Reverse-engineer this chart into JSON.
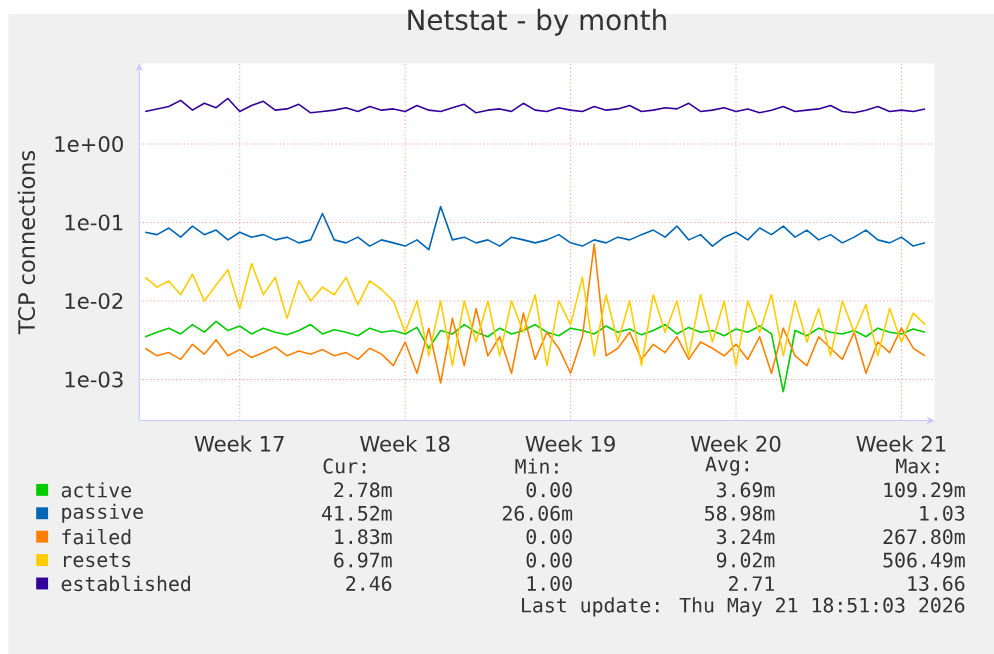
{
  "chart_data": {
    "type": "line",
    "title": "Netstat - by month",
    "ylabel": "TCP connections",
    "log": "y",
    "grid": true,
    "legend": "bottom",
    "categories": [
      null,
      null,
      null,
      null,
      null,
      null,
      null,
      null,
      "Week 17",
      null,
      null,
      null,
      null,
      null,
      null,
      null,
      null,
      null,
      null,
      null,
      null,
      null,
      "Week 18",
      null,
      null,
      null,
      null,
      null,
      null,
      null,
      null,
      null,
      null,
      null,
      null,
      null,
      "Week 19",
      null,
      null,
      null,
      null,
      null,
      null,
      null,
      null,
      null,
      null,
      null,
      null,
      null,
      "Week 20",
      null,
      null,
      null,
      null,
      null,
      null,
      null,
      null,
      null,
      null,
      null,
      null,
      null,
      "Week 21",
      null,
      null
    ],
    "ylim": [
      0.0003,
      10.6
    ],
    "yticks": [
      {
        "value": 0.001,
        "label": "1e-03"
      },
      {
        "value": 0.01,
        "label": "1e-02"
      },
      {
        "value": 0.1,
        "label": "1e-01"
      },
      {
        "value": 1,
        "label": "1e+00"
      }
    ],
    "series": [
      {
        "name": "active",
        "color": "#00cc00",
        "values": [
          0.0035,
          0.004,
          0.0045,
          0.0038,
          0.005,
          0.004,
          0.0055,
          0.0042,
          0.0048,
          0.0038,
          0.0045,
          0.004,
          0.0037,
          0.0042,
          0.005,
          0.0038,
          0.0043,
          0.004,
          0.0036,
          0.0045,
          0.004,
          0.0042,
          0.0038,
          0.0046,
          0.0025,
          0.0042,
          0.0038,
          0.005,
          0.004,
          0.0035,
          0.0045,
          0.0038,
          0.0042,
          0.005,
          0.004,
          0.0036,
          0.0045,
          0.0042,
          0.0038,
          0.0048,
          0.004,
          0.0044,
          0.0037,
          0.0042,
          0.005,
          0.0038,
          0.0046,
          0.004,
          0.0042,
          0.0036,
          0.0044,
          0.004,
          0.0048,
          0.0038,
          0.0007,
          0.0042,
          0.0036,
          0.0045,
          0.004,
          0.0038,
          0.0042,
          0.0035,
          0.0045,
          0.004,
          0.0038,
          0.0044,
          0.004
        ]
      },
      {
        "name": "passive",
        "color": "#0066b3",
        "values": [
          0.075,
          0.07,
          0.085,
          0.065,
          0.09,
          0.07,
          0.08,
          0.06,
          0.075,
          0.065,
          0.07,
          0.06,
          0.065,
          0.055,
          0.06,
          0.13,
          0.06,
          0.055,
          0.065,
          0.05,
          0.06,
          0.055,
          0.05,
          0.06,
          0.045,
          0.16,
          0.06,
          0.065,
          0.055,
          0.06,
          0.05,
          0.065,
          0.06,
          0.055,
          0.06,
          0.07,
          0.055,
          0.05,
          0.06,
          0.055,
          0.065,
          0.06,
          0.07,
          0.08,
          0.065,
          0.09,
          0.06,
          0.07,
          0.05,
          0.065,
          0.075,
          0.06,
          0.085,
          0.07,
          0.09,
          0.065,
          0.08,
          0.06,
          0.07,
          0.055,
          0.065,
          0.08,
          0.06,
          0.055,
          0.065,
          0.05,
          0.055
        ]
      },
      {
        "name": "failed",
        "color": "#ff8000",
        "values": [
          0.0025,
          0.002,
          0.0022,
          0.0018,
          0.0028,
          0.0021,
          0.0032,
          0.002,
          0.0024,
          0.0019,
          0.0022,
          0.0026,
          0.002,
          0.0023,
          0.0021,
          0.0024,
          0.002,
          0.0022,
          0.0018,
          0.0025,
          0.0021,
          0.0015,
          0.003,
          0.0012,
          0.0045,
          0.0009,
          0.006,
          0.0015,
          0.008,
          0.002,
          0.0035,
          0.0012,
          0.007,
          0.0018,
          0.004,
          0.0025,
          0.0012,
          0.0035,
          0.053,
          0.002,
          0.0025,
          0.004,
          0.0018,
          0.0028,
          0.0022,
          0.0035,
          0.0018,
          0.003,
          0.0025,
          0.002,
          0.0028,
          0.0018,
          0.0035,
          0.0012,
          0.0045,
          0.002,
          0.0015,
          0.0035,
          0.0025,
          0.0018,
          0.004,
          0.0012,
          0.003,
          0.0022,
          0.0045,
          0.0025,
          0.002
        ]
      },
      {
        "name": "resets",
        "color": "#ffcc00",
        "values": [
          0.02,
          0.015,
          0.018,
          0.012,
          0.022,
          0.01,
          0.016,
          0.025,
          0.008,
          0.03,
          0.012,
          0.02,
          0.006,
          0.018,
          0.01,
          0.015,
          0.012,
          0.02,
          0.009,
          0.018,
          0.014,
          0.01,
          0.004,
          0.01,
          0.002,
          0.01,
          0.0015,
          0.01,
          0.003,
          0.01,
          0.002,
          0.01,
          0.004,
          0.012,
          0.0015,
          0.01,
          0.005,
          0.02,
          0.002,
          0.012,
          0.003,
          0.01,
          0.0015,
          0.012,
          0.004,
          0.01,
          0.002,
          0.012,
          0.003,
          0.01,
          0.0015,
          0.01,
          0.004,
          0.012,
          0.002,
          0.01,
          0.003,
          0.008,
          0.002,
          0.01,
          0.004,
          0.009,
          0.002,
          0.008,
          0.003,
          0.007,
          0.005
        ]
      },
      {
        "name": "established",
        "color": "#330099",
        "values": [
          2.6,
          2.8,
          3.0,
          3.6,
          2.7,
          3.3,
          2.9,
          3.8,
          2.6,
          3.1,
          3.5,
          2.7,
          2.8,
          3.2,
          2.5,
          2.6,
          2.7,
          2.9,
          2.6,
          3.0,
          2.7,
          2.8,
          2.6,
          3.1,
          2.7,
          2.6,
          2.9,
          3.2,
          2.5,
          2.7,
          2.8,
          2.6,
          3.3,
          2.7,
          2.6,
          2.9,
          2.7,
          2.6,
          3.0,
          2.7,
          2.8,
          3.1,
          2.6,
          2.7,
          2.9,
          2.8,
          3.3,
          2.6,
          2.7,
          2.9,
          2.6,
          2.8,
          2.5,
          2.7,
          3.0,
          2.6,
          2.7,
          2.8,
          3.1,
          2.6,
          2.5,
          2.7,
          3.0,
          2.6,
          2.7,
          2.6,
          2.8
        ]
      }
    ],
    "annotations": [
      "Cur:",
      "Min:",
      "Avg:",
      "Max:",
      "2.78m",
      "0.00",
      "3.69m",
      "109.29m",
      "41.52m",
      "26.06m",
      "58.98m",
      "1.03",
      "1.83m",
      "0.00",
      "3.24m",
      "267.80m",
      "6.97m",
      "0.00",
      "9.02m",
      "506.49m",
      "2.46",
      "1.00",
      "2.71",
      "13.66",
      "Last update: Thu May 21 18:51:03 2026"
    ]
  }
}
